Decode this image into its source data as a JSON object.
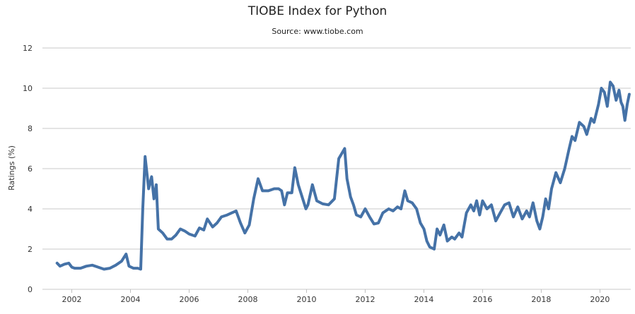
{
  "chart_data": {
    "type": "line",
    "title": "TIOBE Index for Python",
    "subtitle": "Source: www.tiobe.com",
    "ylabel": "Ratings (%)",
    "xlabel": "",
    "xlim": [
      2001.3,
      2020.9
    ],
    "ylim": [
      0,
      12
    ],
    "x_ticks": [
      2002,
      2004,
      2006,
      2008,
      2010,
      2012,
      2014,
      2016,
      2018,
      2020
    ],
    "y_ticks": [
      0,
      2,
      4,
      6,
      8,
      10,
      12
    ],
    "grid": true,
    "legend": "none",
    "line_color": "#4572a7",
    "series": [
      {
        "values": [
          [
            2001.5,
            1.3
          ],
          [
            2001.6,
            1.15
          ],
          [
            2001.75,
            1.25
          ],
          [
            2001.9,
            1.3
          ],
          [
            2002.0,
            1.1
          ],
          [
            2002.1,
            1.05
          ],
          [
            2002.3,
            1.05
          ],
          [
            2002.5,
            1.15
          ],
          [
            2002.7,
            1.2
          ],
          [
            2002.9,
            1.1
          ],
          [
            2003.1,
            1.0
          ],
          [
            2003.3,
            1.05
          ],
          [
            2003.5,
            1.2
          ],
          [
            2003.7,
            1.4
          ],
          [
            2003.85,
            1.75
          ],
          [
            2003.95,
            1.15
          ],
          [
            2004.1,
            1.05
          ],
          [
            2004.25,
            1.05
          ],
          [
            2004.35,
            1.0
          ],
          [
            2004.42,
            4.0
          ],
          [
            2004.5,
            6.6
          ],
          [
            2004.62,
            5.0
          ],
          [
            2004.72,
            5.6
          ],
          [
            2004.8,
            4.5
          ],
          [
            2004.88,
            5.2
          ],
          [
            2004.95,
            3.0
          ],
          [
            2005.1,
            2.8
          ],
          [
            2005.25,
            2.5
          ],
          [
            2005.4,
            2.5
          ],
          [
            2005.55,
            2.7
          ],
          [
            2005.7,
            3.0
          ],
          [
            2005.85,
            2.9
          ],
          [
            2006.0,
            2.75
          ],
          [
            2006.2,
            2.65
          ],
          [
            2006.35,
            3.05
          ],
          [
            2006.5,
            2.95
          ],
          [
            2006.62,
            3.5
          ],
          [
            2006.8,
            3.1
          ],
          [
            2006.95,
            3.3
          ],
          [
            2007.1,
            3.6
          ],
          [
            2007.3,
            3.7
          ],
          [
            2007.45,
            3.8
          ],
          [
            2007.6,
            3.9
          ],
          [
            2007.75,
            3.3
          ],
          [
            2007.9,
            2.8
          ],
          [
            2008.05,
            3.2
          ],
          [
            2008.2,
            4.5
          ],
          [
            2008.35,
            5.5
          ],
          [
            2008.5,
            4.9
          ],
          [
            2008.7,
            4.9
          ],
          [
            2008.9,
            5.0
          ],
          [
            2009.05,
            5.0
          ],
          [
            2009.15,
            4.9
          ],
          [
            2009.25,
            4.2
          ],
          [
            2009.35,
            4.8
          ],
          [
            2009.5,
            4.8
          ],
          [
            2009.6,
            6.05
          ],
          [
            2009.72,
            5.2
          ],
          [
            2009.85,
            4.6
          ],
          [
            2009.98,
            4.0
          ],
          [
            2010.05,
            4.2
          ],
          [
            2010.2,
            5.2
          ],
          [
            2010.35,
            4.4
          ],
          [
            2010.55,
            4.25
          ],
          [
            2010.75,
            4.2
          ],
          [
            2010.95,
            4.5
          ],
          [
            2011.1,
            6.5
          ],
          [
            2011.22,
            6.8
          ],
          [
            2011.3,
            7.0
          ],
          [
            2011.38,
            5.5
          ],
          [
            2011.5,
            4.6
          ],
          [
            2011.6,
            4.2
          ],
          [
            2011.7,
            3.7
          ],
          [
            2011.85,
            3.6
          ],
          [
            2012.0,
            4.0
          ],
          [
            2012.15,
            3.6
          ],
          [
            2012.3,
            3.25
          ],
          [
            2012.45,
            3.3
          ],
          [
            2012.6,
            3.8
          ],
          [
            2012.8,
            4.0
          ],
          [
            2012.95,
            3.9
          ],
          [
            2013.1,
            4.1
          ],
          [
            2013.22,
            4.0
          ],
          [
            2013.35,
            4.9
          ],
          [
            2013.45,
            4.4
          ],
          [
            2013.6,
            4.3
          ],
          [
            2013.75,
            4.0
          ],
          [
            2013.88,
            3.3
          ],
          [
            2014.0,
            3.0
          ],
          [
            2014.1,
            2.4
          ],
          [
            2014.2,
            2.1
          ],
          [
            2014.35,
            2.0
          ],
          [
            2014.45,
            3.0
          ],
          [
            2014.55,
            2.7
          ],
          [
            2014.68,
            3.2
          ],
          [
            2014.8,
            2.4
          ],
          [
            2014.95,
            2.6
          ],
          [
            2015.05,
            2.5
          ],
          [
            2015.2,
            2.8
          ],
          [
            2015.3,
            2.6
          ],
          [
            2015.45,
            3.8
          ],
          [
            2015.6,
            4.2
          ],
          [
            2015.7,
            3.9
          ],
          [
            2015.8,
            4.4
          ],
          [
            2015.9,
            3.7
          ],
          [
            2016.0,
            4.4
          ],
          [
            2016.15,
            4.0
          ],
          [
            2016.3,
            4.2
          ],
          [
            2016.45,
            3.4
          ],
          [
            2016.6,
            3.8
          ],
          [
            2016.75,
            4.2
          ],
          [
            2016.9,
            4.3
          ],
          [
            2017.05,
            3.6
          ],
          [
            2017.2,
            4.1
          ],
          [
            2017.35,
            3.5
          ],
          [
            2017.5,
            3.9
          ],
          [
            2017.6,
            3.6
          ],
          [
            2017.72,
            4.3
          ],
          [
            2017.85,
            3.4
          ],
          [
            2017.95,
            3.0
          ],
          [
            2018.05,
            3.6
          ],
          [
            2018.15,
            4.5
          ],
          [
            2018.25,
            4.0
          ],
          [
            2018.35,
            5.0
          ],
          [
            2018.5,
            5.8
          ],
          [
            2018.65,
            5.3
          ],
          [
            2018.8,
            6.0
          ],
          [
            2018.95,
            7.0
          ],
          [
            2019.05,
            7.6
          ],
          [
            2019.15,
            7.4
          ],
          [
            2019.3,
            8.3
          ],
          [
            2019.45,
            8.1
          ],
          [
            2019.55,
            7.7
          ],
          [
            2019.7,
            8.5
          ],
          [
            2019.8,
            8.3
          ],
          [
            2019.95,
            9.2
          ],
          [
            2020.05,
            10.0
          ],
          [
            2020.15,
            9.8
          ],
          [
            2020.25,
            9.1
          ],
          [
            2020.35,
            10.3
          ],
          [
            2020.45,
            10.1
          ],
          [
            2020.55,
            9.4
          ],
          [
            2020.65,
            9.9
          ],
          [
            2020.72,
            9.3
          ],
          [
            2020.78,
            9.1
          ],
          [
            2020.85,
            8.4
          ],
          [
            2020.93,
            9.2
          ],
          [
            2021.0,
            9.7
          ]
        ]
      }
    ]
  }
}
